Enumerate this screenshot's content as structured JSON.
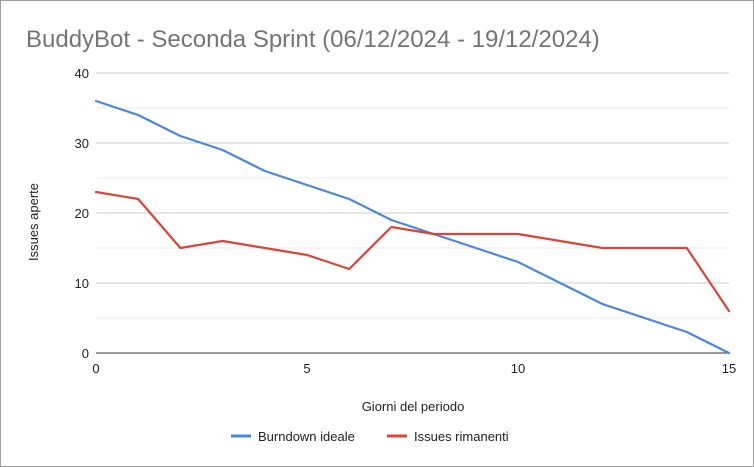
{
  "chart_data": {
    "type": "line",
    "title": "BuddyBot - Seconda Sprint (06/12/2024 - 19/12/2024)",
    "xlabel": "Giorni del periodo",
    "ylabel": "Issues aperte",
    "xlim": [
      0,
      15
    ],
    "ylim": [
      0,
      40
    ],
    "x_ticks": [
      0,
      5,
      10,
      15
    ],
    "y_ticks": [
      0,
      10,
      20,
      30,
      40
    ],
    "grid": true,
    "legend_position": "bottom",
    "series": [
      {
        "name": "Burndown ideale",
        "color": "#4a86e8",
        "x": [
          0,
          1,
          2,
          3,
          4,
          5,
          6,
          7,
          8,
          9,
          10,
          11,
          12,
          13,
          14,
          15
        ],
        "y": [
          36,
          34,
          31,
          29,
          26,
          24,
          22,
          19,
          17,
          15,
          13,
          10,
          7,
          5,
          3,
          0
        ]
      },
      {
        "name": "Issues rimanenti",
        "color": "#db4437",
        "x": [
          0,
          1,
          2,
          3,
          4,
          5,
          6,
          7,
          8,
          9,
          10,
          11,
          12,
          13,
          14,
          15
        ],
        "y": [
          23,
          22,
          15,
          16,
          15,
          14,
          12,
          18,
          17,
          17,
          17,
          16,
          15,
          15,
          15,
          6
        ]
      }
    ]
  }
}
